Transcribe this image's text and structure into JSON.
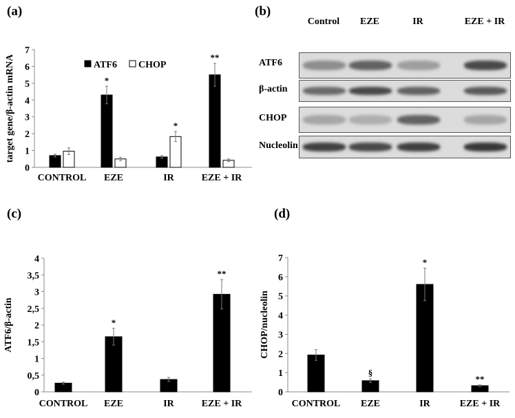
{
  "panels": {
    "a": "(a)",
    "b": "(b)",
    "c": "(c)",
    "d": "(d)"
  },
  "blot": {
    "lanes": [
      "Control",
      "EZE",
      "IR",
      "EZE + IR"
    ],
    "rows": [
      {
        "label": "ATF6",
        "band_intensity": [
          0.35,
          0.6,
          0.25,
          0.75
        ]
      },
      {
        "label": "β-actin",
        "band_intensity": [
          0.55,
          0.75,
          0.6,
          0.65
        ]
      },
      {
        "label": "CHOP",
        "band_intensity": [
          0.2,
          0.15,
          0.6,
          0.2
        ]
      },
      {
        "label": "Nucleolin",
        "band_intensity": [
          0.8,
          0.75,
          0.8,
          0.85
        ]
      }
    ]
  },
  "chart_data": [
    {
      "id": "a",
      "type": "bar",
      "categories": [
        "CONTROL",
        "EZE",
        "IR",
        "EZE + IR"
      ],
      "ylabel": "target gene/β-actin mRNA",
      "ylim": [
        0,
        7
      ],
      "yticks": [
        "0",
        "1",
        "2",
        "3",
        "4",
        "5",
        "6",
        "7"
      ],
      "legend": [
        "ATF6",
        "CHOP"
      ],
      "legend_position": "top-left",
      "series": [
        {
          "name": "ATF6",
          "color": "#000000",
          "values": [
            0.7,
            4.3,
            0.62,
            5.5
          ],
          "errors": [
            0.08,
            0.52,
            0.08,
            0.68
          ],
          "annotations": [
            "",
            "*",
            "",
            "**"
          ]
        },
        {
          "name": "CHOP",
          "color": "#ffffff",
          "values": [
            0.96,
            0.5,
            1.83,
            0.42
          ],
          "errors": [
            0.2,
            0.1,
            0.3,
            0.08
          ],
          "annotations": [
            "",
            "",
            "*",
            ""
          ]
        }
      ]
    },
    {
      "id": "c",
      "type": "bar",
      "categories": [
        "CONTROL",
        "EZE",
        "IR",
        "EZE + IR"
      ],
      "ylabel": "ATF6/β-actin",
      "ylim": [
        0,
        4
      ],
      "yticks": [
        "0",
        "0,5",
        "1",
        "1,5",
        "2",
        "2,5",
        "3",
        "3,5",
        "4"
      ],
      "series": [
        {
          "name": "ATF6/β-actin",
          "color": "#000000",
          "values": [
            0.26,
            1.65,
            0.37,
            2.92
          ],
          "errors": [
            0.03,
            0.25,
            0.06,
            0.44
          ],
          "annotations": [
            "",
            "*",
            "",
            "**"
          ]
        }
      ]
    },
    {
      "id": "d",
      "type": "bar",
      "categories": [
        "CONTROL",
        "EZE",
        "IR",
        "EZE + IR"
      ],
      "ylabel": "CHOP/nucleolin",
      "ylim": [
        0,
        7
      ],
      "yticks": [
        "0",
        "1",
        "2",
        "3",
        "4",
        "5",
        "6",
        "7"
      ],
      "series": [
        {
          "name": "CHOP/nucleolin",
          "color": "#000000",
          "values": [
            1.92,
            0.58,
            5.6,
            0.32
          ],
          "errors": [
            0.28,
            0.1,
            0.85,
            0.04
          ],
          "annotations": [
            "",
            "§",
            "*",
            "**"
          ]
        }
      ]
    }
  ]
}
